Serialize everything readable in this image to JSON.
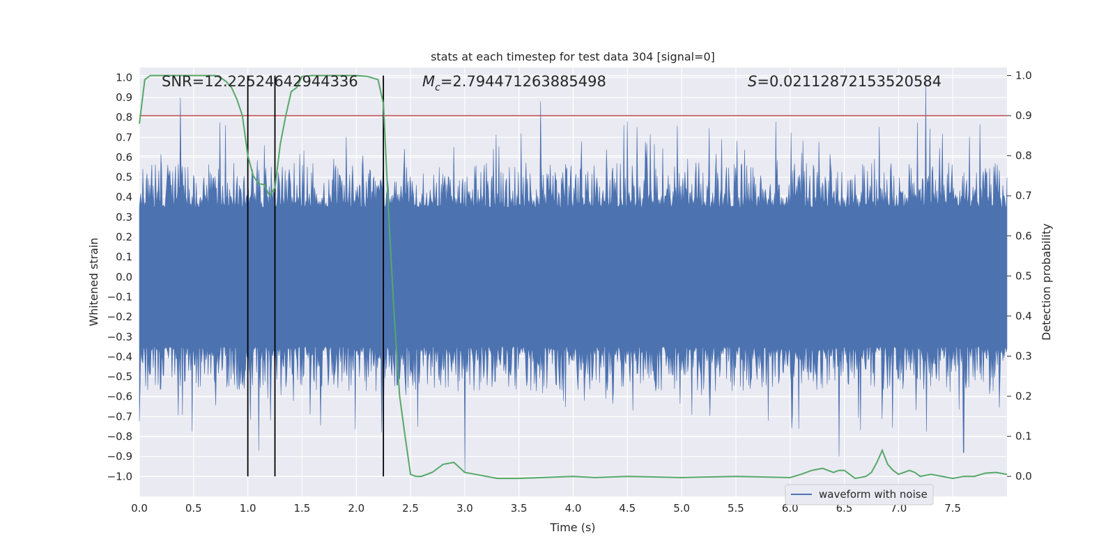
{
  "chart_data": {
    "type": "line",
    "title": "stats at each timestep for test data 304 [signal=0]",
    "xlabel": "Time (s)",
    "ylabel_left": "Whitened strain",
    "ylabel_right": "Detection probability",
    "xlim": [
      0.0,
      8.0
    ],
    "ylim_left": [
      -1.1,
      1.05
    ],
    "ylim_right": [
      -0.05,
      1.02
    ],
    "x_ticks": [
      "0.0",
      "0.5",
      "1.0",
      "1.5",
      "2.0",
      "2.5",
      "3.0",
      "3.5",
      "4.0",
      "4.5",
      "5.0",
      "5.5",
      "6.0",
      "6.5",
      "7.0",
      "7.5"
    ],
    "y_left_ticks": [
      "1.0",
      "0.9",
      "0.8",
      "0.7",
      "0.6",
      "0.5",
      "0.4",
      "0.3",
      "0.2",
      "0.1",
      "0.0",
      "-0.1",
      "-0.2",
      "-0.3",
      "-0.4",
      "-0.5",
      "-0.6",
      "-0.7",
      "-0.8",
      "-0.9",
      "-1.0"
    ],
    "y_right_ticks": [
      "1.0",
      "0.9",
      "0.8",
      "0.7",
      "0.6",
      "0.5",
      "0.4",
      "0.3",
      "0.2",
      "0.1",
      "0.0"
    ],
    "annotations": {
      "snr": "SNR=12.22524642944336",
      "mc_symbol": "M",
      "mc_sub": "c",
      "mc_value": "=2.794471263885498",
      "s_symbol": "S",
      "s_value": "=0.02112872153520584"
    },
    "threshold": {
      "value": 0.9,
      "color": "#c44e52"
    },
    "vertical_markers": [
      1.0,
      1.25,
      2.25
    ],
    "legend": {
      "label": "waveform with noise",
      "position": "lower-right"
    },
    "series": [
      {
        "name": "waveform with noise",
        "axis": "left",
        "color": "#4c72b0",
        "style": "dense-noise",
        "core_amplitude": 0.35,
        "peak_amplitude": 0.95,
        "notable_peaks": [
          {
            "x": 0.38,
            "y": 0.9
          },
          {
            "x": 3.7,
            "y": 0.88
          },
          {
            "x": 4.5,
            "y": 0.78
          },
          {
            "x": 7.25,
            "y": 0.98
          },
          {
            "x": 3.0,
            "y": -0.98
          },
          {
            "x": 1.1,
            "y": -0.87
          },
          {
            "x": 6.45,
            "y": -0.9
          },
          {
            "x": 7.6,
            "y": -0.88
          }
        ]
      },
      {
        "name": "detection probability",
        "axis": "right",
        "color": "#55a868",
        "x": [
          0.0,
          0.05,
          0.1,
          0.2,
          0.3,
          0.4,
          0.5,
          0.6,
          0.7,
          0.75,
          0.8,
          0.85,
          0.9,
          0.95,
          1.0,
          1.05,
          1.1,
          1.15,
          1.2,
          1.25,
          1.3,
          1.35,
          1.4,
          1.45,
          1.5,
          1.6,
          1.7,
          1.8,
          1.9,
          2.0,
          2.1,
          2.2,
          2.25,
          2.3,
          2.35,
          2.4,
          2.45,
          2.5,
          2.55,
          2.6,
          2.7,
          2.8,
          2.9,
          3.0,
          3.1,
          3.2,
          3.3,
          3.5,
          4.0,
          4.2,
          4.5,
          5.0,
          5.5,
          6.0,
          6.1,
          6.2,
          6.3,
          6.4,
          6.45,
          6.5,
          6.55,
          6.6,
          6.7,
          6.75,
          6.8,
          6.85,
          6.9,
          6.95,
          7.0,
          7.05,
          7.1,
          7.15,
          7.2,
          7.3,
          7.5,
          7.6,
          7.7,
          7.8,
          7.9,
          8.0
        ],
        "values": [
          0.88,
          0.99,
          1.0,
          1.0,
          1.0,
          1.0,
          1.0,
          1.0,
          1.0,
          0.995,
          0.985,
          0.97,
          0.94,
          0.9,
          0.8,
          0.75,
          0.73,
          0.728,
          0.7,
          0.72,
          0.83,
          0.9,
          0.96,
          0.97,
          0.998,
          1.0,
          1.0,
          1.0,
          1.0,
          1.0,
          0.998,
          0.99,
          0.93,
          0.65,
          0.4,
          0.2,
          0.1,
          0.005,
          0.0,
          0.0,
          0.01,
          0.03,
          0.035,
          0.01,
          0.005,
          0.0,
          -0.005,
          -0.005,
          0.0,
          -0.003,
          0.0,
          -0.003,
          0.0,
          -0.003,
          0.005,
          0.015,
          0.02,
          0.01,
          0.015,
          0.015,
          0.005,
          -0.005,
          0.0,
          0.01,
          0.035,
          0.065,
          0.03,
          0.015,
          0.005,
          0.01,
          0.015,
          0.01,
          0.0,
          0.005,
          -0.005,
          0.0,
          0.0,
          0.008,
          0.01,
          0.005
        ]
      }
    ]
  }
}
